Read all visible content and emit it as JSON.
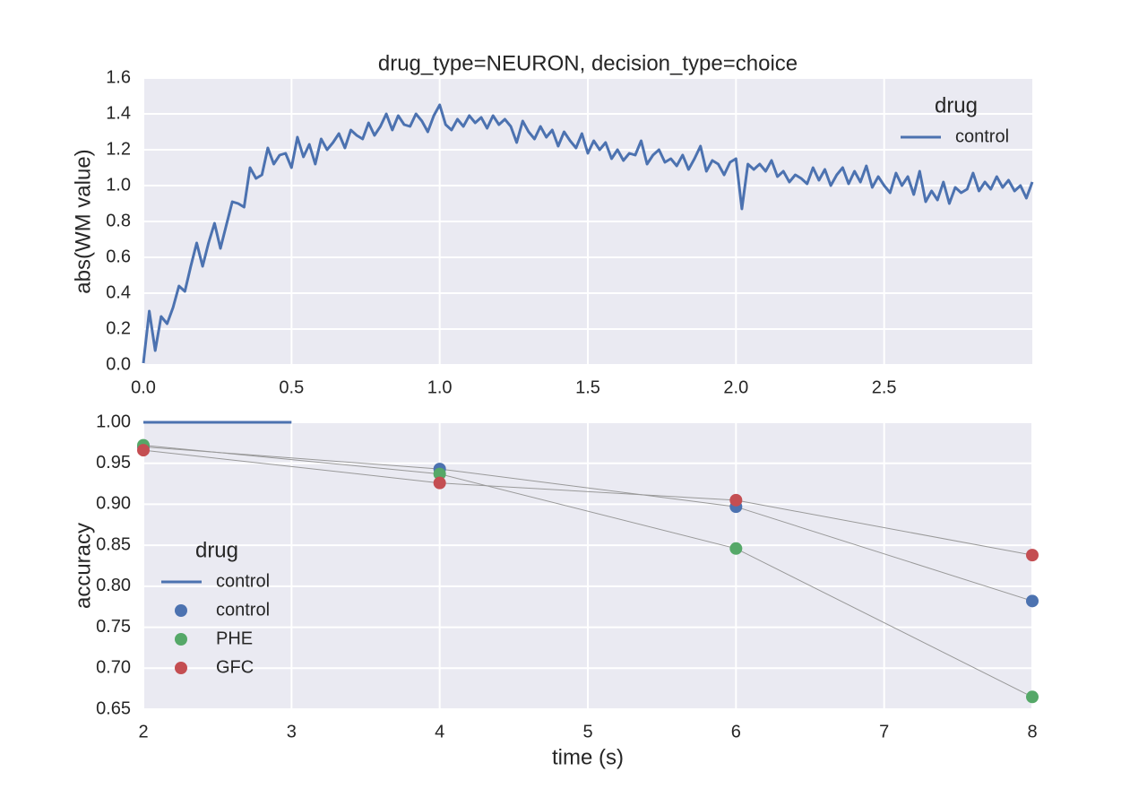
{
  "chart_data": [
    {
      "type": "line",
      "title": "drug_type=NEURON, decision_type=choice",
      "ylabel": "abs(WM value)",
      "x": [
        0,
        0.02,
        0.04,
        0.06,
        0.08,
        0.1,
        0.12,
        0.14,
        0.16,
        0.18,
        0.2,
        0.22,
        0.24,
        0.26,
        0.28,
        0.3,
        0.32,
        0.34,
        0.36,
        0.38,
        0.4,
        0.42,
        0.44,
        0.46,
        0.48,
        0.5,
        0.52,
        0.54,
        0.56,
        0.58,
        0.6,
        0.62,
        0.64,
        0.66,
        0.68,
        0.7,
        0.72,
        0.74,
        0.76,
        0.78,
        0.8,
        0.82,
        0.84,
        0.86,
        0.88,
        0.9,
        0.92,
        0.94,
        0.96,
        0.98,
        1,
        1.02,
        1.04,
        1.06,
        1.08,
        1.1,
        1.12,
        1.14,
        1.16,
        1.18,
        1.2,
        1.22,
        1.24,
        1.26,
        1.28,
        1.3,
        1.32,
        1.34,
        1.36,
        1.38,
        1.4,
        1.42,
        1.44,
        1.46,
        1.48,
        1.5,
        1.52,
        1.54,
        1.56,
        1.58,
        1.6,
        1.62,
        1.64,
        1.66,
        1.68,
        1.7,
        1.72,
        1.74,
        1.76,
        1.78,
        1.8,
        1.82,
        1.84,
        1.86,
        1.88,
        1.9,
        1.92,
        1.94,
        1.96,
        1.98,
        2,
        2.02,
        2.04,
        2.06,
        2.08,
        2.1,
        2.12,
        2.14,
        2.16,
        2.18,
        2.2,
        2.22,
        2.24,
        2.26,
        2.28,
        2.3,
        2.32,
        2.34,
        2.36,
        2.38,
        2.4,
        2.42,
        2.44,
        2.46,
        2.48,
        2.5,
        2.52,
        2.54,
        2.56,
        2.58,
        2.6,
        2.62,
        2.64,
        2.66,
        2.68,
        2.7,
        2.72,
        2.74,
        2.76,
        2.78,
        2.8,
        2.82,
        2.84,
        2.86,
        2.88,
        2.9,
        2.92,
        2.94,
        2.96,
        2.98,
        3
      ],
      "series": [
        {
          "name": "control",
          "type": "line",
          "color": "#4c72b0",
          "values": [
            0.01,
            0.3,
            0.08,
            0.27,
            0.23,
            0.32,
            0.44,
            0.41,
            0.55,
            0.68,
            0.55,
            0.68,
            0.79,
            0.65,
            0.78,
            0.91,
            0.9,
            0.88,
            1.1,
            1.04,
            1.06,
            1.21,
            1.12,
            1.17,
            1.18,
            1.1,
            1.27,
            1.16,
            1.23,
            1.12,
            1.26,
            1.2,
            1.24,
            1.29,
            1.21,
            1.31,
            1.28,
            1.26,
            1.35,
            1.28,
            1.33,
            1.4,
            1.31,
            1.39,
            1.34,
            1.33,
            1.4,
            1.36,
            1.3,
            1.39,
            1.45,
            1.34,
            1.31,
            1.37,
            1.33,
            1.39,
            1.35,
            1.38,
            1.32,
            1.39,
            1.34,
            1.37,
            1.33,
            1.24,
            1.36,
            1.3,
            1.26,
            1.33,
            1.27,
            1.31,
            1.22,
            1.3,
            1.25,
            1.21,
            1.29,
            1.18,
            1.25,
            1.2,
            1.24,
            1.15,
            1.2,
            1.14,
            1.18,
            1.17,
            1.25,
            1.12,
            1.17,
            1.2,
            1.13,
            1.15,
            1.11,
            1.17,
            1.09,
            1.15,
            1.22,
            1.08,
            1.14,
            1.12,
            1.06,
            1.13,
            1.15,
            0.87,
            1.12,
            1.09,
            1.12,
            1.08,
            1.14,
            1.05,
            1.08,
            1.02,
            1.06,
            1.04,
            1.01,
            1.1,
            1.03,
            1.09,
            1,
            1.06,
            1.1,
            1.01,
            1.08,
            1.02,
            1.11,
            0.99,
            1.05,
            1,
            0.96,
            1.07,
            1,
            1.05,
            0.95,
            1.08,
            0.91,
            0.97,
            0.92,
            1.02,
            0.9,
            0.99,
            0.96,
            0.98,
            1.07,
            0.97,
            1.02,
            0.98,
            1.05,
            0.99,
            1.03,
            0.97,
            1,
            0.93,
            1.02
          ]
        }
      ],
      "legend_title": "drug",
      "legend": "upper right",
      "grid": true,
      "xlim": [
        0,
        3.0
      ],
      "xticks": [
        {
          "value": 0,
          "label": "0.0"
        },
        0.5,
        {
          "value": 1,
          "label": "1.0"
        },
        1.5,
        {
          "value": 2,
          "label": "2.0"
        },
        2.5
      ],
      "ylim": [
        0,
        1.6
      ],
      "yticks": [
        {
          "value": 0,
          "label": "0.0"
        },
        0.2,
        0.4,
        0.6,
        0.8,
        {
          "value": 1,
          "label": "1.0"
        },
        1.2,
        1.4,
        1.6
      ]
    },
    {
      "type": "line",
      "xlabel": "time (s)",
      "ylabel": "accuracy",
      "connect_color": "#999999",
      "series": [
        {
          "name": "control",
          "type": "line",
          "color": "#4c72b0",
          "x": [
            2,
            3
          ],
          "values": [
            1.0,
            1.0
          ]
        },
        {
          "name": "control",
          "type": "scatter",
          "color": "#4c72b0",
          "x": [
            2,
            4,
            6,
            8
          ],
          "values": [
            0.97,
            0.943,
            0.897,
            0.782
          ]
        },
        {
          "name": "PHE",
          "type": "scatter",
          "color": "#55a868",
          "x": [
            2,
            4,
            6,
            8
          ],
          "values": [
            0.972,
            0.937,
            0.846,
            0.665
          ]
        },
        {
          "name": "GFC",
          "type": "scatter",
          "color": "#c44e52",
          "x": [
            2,
            4,
            6,
            8
          ],
          "values": [
            0.966,
            0.926,
            0.905,
            0.838
          ]
        }
      ],
      "legend_title": "drug",
      "legend": "lower left",
      "grid": true,
      "xlim": [
        2,
        8
      ],
      "xticks": [
        2,
        3,
        4,
        5,
        6,
        7,
        8
      ],
      "ylim": [
        0.65,
        1.0
      ],
      "yticks": [
        0.65,
        {
          "value": 0.7,
          "label": "0.70"
        },
        0.75,
        {
          "value": 0.8,
          "label": "0.80"
        },
        0.85,
        {
          "value": 0.9,
          "label": "0.90"
        },
        0.95,
        {
          "value": 1.0,
          "label": "1.00"
        }
      ]
    }
  ]
}
